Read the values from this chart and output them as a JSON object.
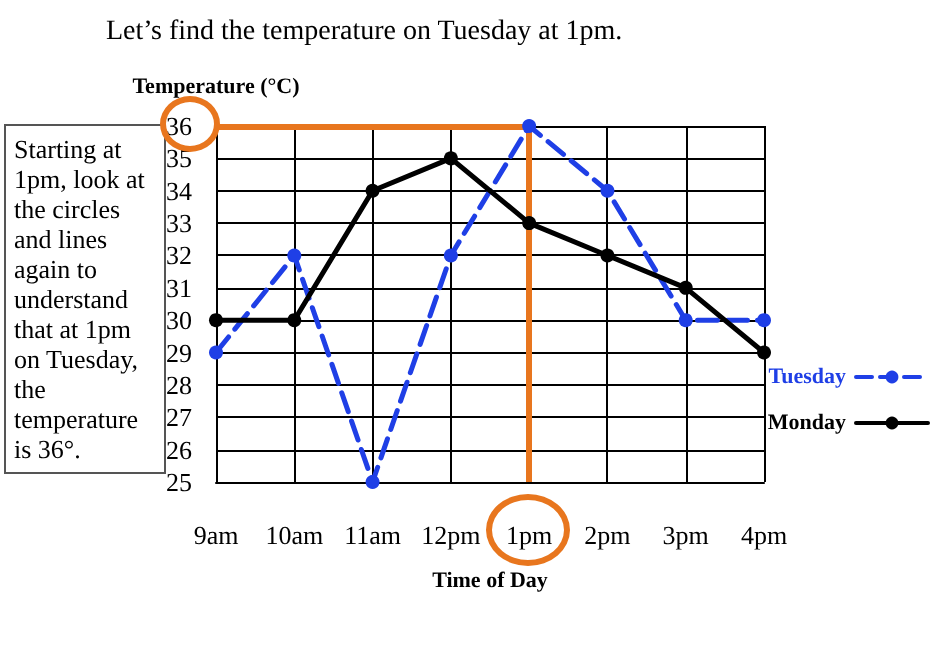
{
  "chart_data": {
    "type": "line",
    "title": "Let’s find the temperature on Tuesday at 1pm.",
    "xlabel": "Time of Day",
    "ylabel": "Temperature (°C)",
    "categories": [
      "9am",
      "10am",
      "11am",
      "12pm",
      "1pm",
      "2pm",
      "3pm",
      "4pm"
    ],
    "series": [
      {
        "name": "Tuesday",
        "color": "#1f3fe6",
        "line_style": "dashed",
        "values": [
          29,
          32,
          25,
          32,
          36,
          34,
          30,
          30
        ]
      },
      {
        "name": "Monday",
        "color": "#000000",
        "line_style": "solid",
        "values": [
          30,
          30,
          34,
          35,
          33,
          32,
          31,
          29
        ]
      }
    ],
    "ylim": [
      25,
      36
    ],
    "yticks": [
      25,
      26,
      27,
      28,
      29,
      30,
      31,
      32,
      33,
      34,
      35,
      36
    ],
    "grid": true,
    "marker": "circle",
    "legend": "right",
    "ref_lines": [
      {
        "axis": "y",
        "value": 36,
        "color": "#e8761e"
      },
      {
        "axis": "x",
        "value": "1pm",
        "color": "#e8761e"
      }
    ],
    "annotations": [
      "Starting at 1pm, look at the circles and lines again to understand that at 1pm on Tuesday, the temperature is 36°."
    ]
  }
}
